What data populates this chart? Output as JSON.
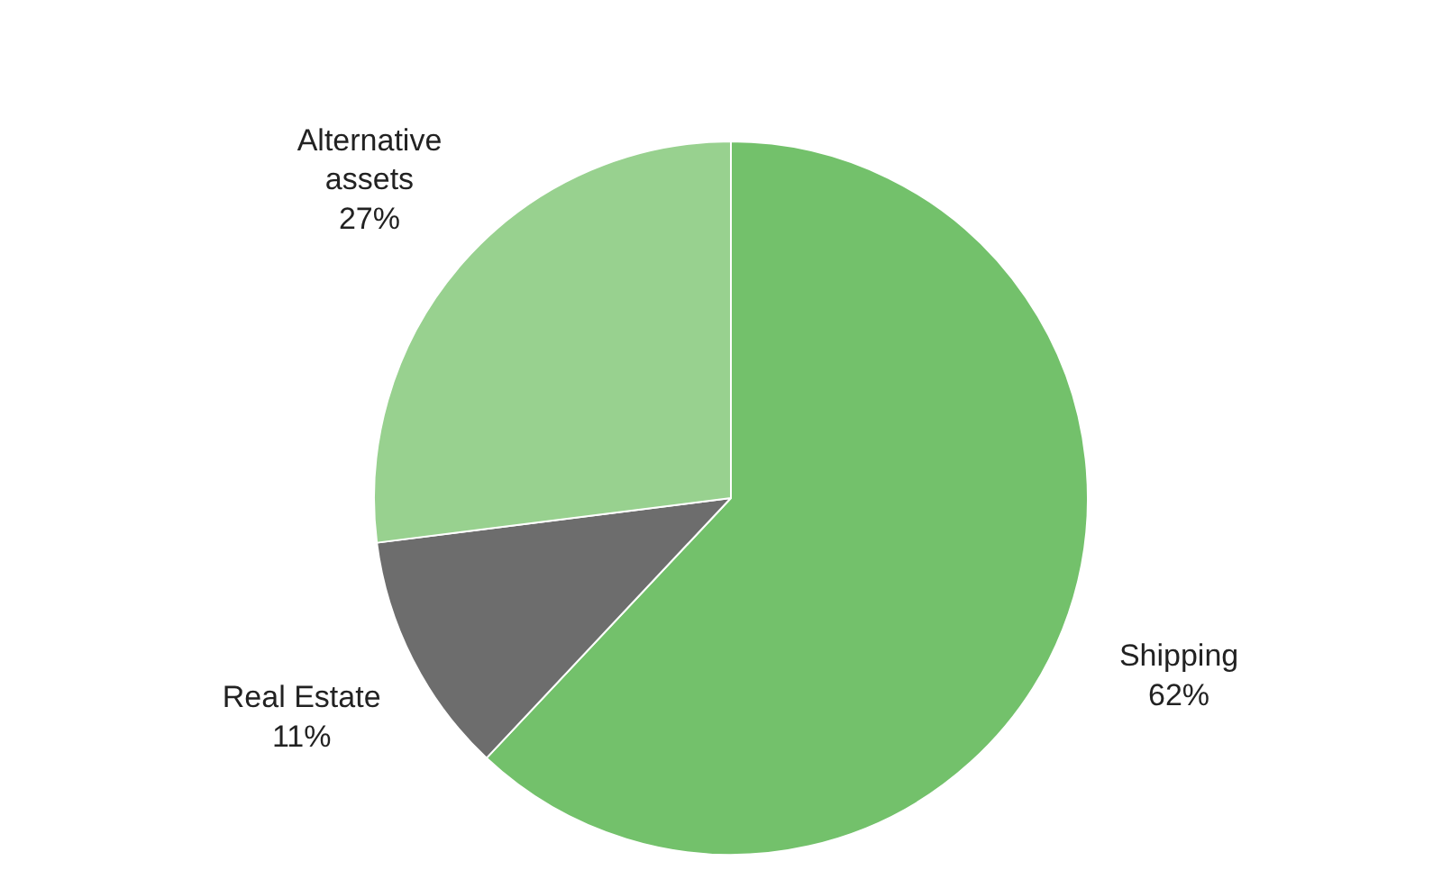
{
  "chart_data": {
    "type": "pie",
    "categories": [
      "Shipping",
      "Real Estate",
      "Alternative assets"
    ],
    "values": [
      62,
      11,
      27
    ],
    "colors": [
      "#73c16b",
      "#6d6d6d",
      "#98d18f"
    ],
    "value_labels": [
      "62%",
      "11%",
      "27%"
    ]
  }
}
